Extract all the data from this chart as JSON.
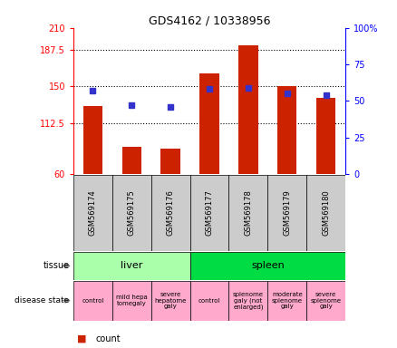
{
  "title": "GDS4162 / 10338956",
  "samples": [
    "GSM569174",
    "GSM569175",
    "GSM569176",
    "GSM569177",
    "GSM569178",
    "GSM569179",
    "GSM569180"
  ],
  "counts": [
    130,
    88,
    86,
    163,
    192,
    150,
    138
  ],
  "percentile_ranks": [
    57,
    47,
    46,
    58,
    59,
    55,
    54
  ],
  "ylim_left": [
    60,
    210
  ],
  "ylim_right": [
    0,
    100
  ],
  "yticks_left": [
    60,
    112.5,
    150,
    187.5,
    210
  ],
  "yticks_right": [
    0,
    25,
    50,
    75,
    100
  ],
  "ytick_labels_left": [
    "60",
    "112.5",
    "150",
    "187.5",
    "210"
  ],
  "ytick_labels_right": [
    "0",
    "25",
    "50",
    "75",
    "100%"
  ],
  "bar_color": "#cc2200",
  "dot_color": "#3333cc",
  "tissue_groups": [
    {
      "label": "liver",
      "start": 0,
      "end": 3,
      "color": "#aaffaa"
    },
    {
      "label": "spleen",
      "start": 3,
      "end": 7,
      "color": "#00dd44"
    }
  ],
  "disease_states": [
    {
      "label": "control",
      "start": 0,
      "end": 1,
      "color": "#ffaacc"
    },
    {
      "label": "mild hepa\ntomegaly",
      "start": 1,
      "end": 2,
      "color": "#ffaacc"
    },
    {
      "label": "severe\nhepatome\ngaly",
      "start": 2,
      "end": 3,
      "color": "#ffaacc"
    },
    {
      "label": "control",
      "start": 3,
      "end": 4,
      "color": "#ffaacc"
    },
    {
      "label": "splenome\ngaly (not\nenlarged)",
      "start": 4,
      "end": 5,
      "color": "#ffaacc"
    },
    {
      "label": "moderate\nsplenome\ngaly",
      "start": 5,
      "end": 6,
      "color": "#ffaacc"
    },
    {
      "label": "severe\nsplenome\ngaly",
      "start": 6,
      "end": 7,
      "color": "#ffaacc"
    }
  ],
  "sample_bg_color": "#cccccc",
  "legend_count_color": "#cc2200",
  "legend_dot_color": "#3333cc",
  "left_label_color": "#888888"
}
